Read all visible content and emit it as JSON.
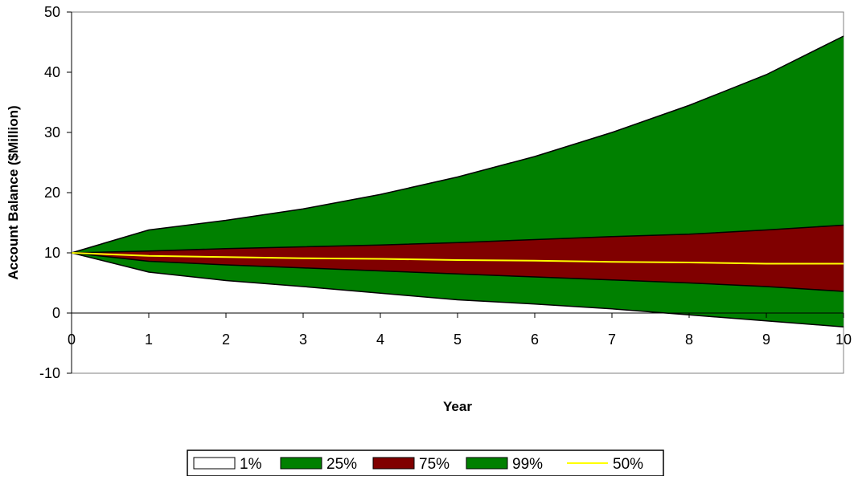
{
  "chart_data": {
    "type": "area",
    "title": "",
    "xlabel": "Year",
    "ylabel": "Account Balance ($Million)",
    "x": [
      0,
      1,
      2,
      3,
      4,
      5,
      6,
      7,
      8,
      9,
      10
    ],
    "xlim": [
      0,
      10
    ],
    "ylim": [
      -10,
      50
    ],
    "xticks": [
      0,
      1,
      2,
      3,
      4,
      5,
      6,
      7,
      8,
      9,
      10
    ],
    "yticks": [
      -10,
      0,
      10,
      20,
      30,
      40,
      50
    ],
    "grid": false,
    "legend_position": "bottom",
    "series": [
      {
        "name": "1%",
        "color": "#ffffff",
        "values": [
          10,
          6.8,
          5.4,
          4.4,
          3.3,
          2.2,
          1.5,
          0.7,
          -0.3,
          -1.3,
          -2.3
        ]
      },
      {
        "name": "25%",
        "color": "#008000",
        "values": [
          10,
          8.6,
          8.0,
          7.5,
          7.0,
          6.5,
          6.0,
          5.5,
          5.0,
          4.4,
          3.6
        ]
      },
      {
        "name": "75%",
        "color": "#800000",
        "values": [
          10,
          10.3,
          10.7,
          11.0,
          11.3,
          11.7,
          12.2,
          12.7,
          13.1,
          13.8,
          14.6
        ]
      },
      {
        "name": "99%",
        "color": "#008000",
        "values": [
          10,
          13.8,
          15.4,
          17.3,
          19.7,
          22.6,
          26.0,
          30.0,
          34.5,
          39.6,
          46.0
        ]
      },
      {
        "name": "50%",
        "color": "#ffff00",
        "values": [
          10,
          9.5,
          9.3,
          9.1,
          9.0,
          8.8,
          8.7,
          8.5,
          8.4,
          8.2,
          8.2
        ]
      }
    ]
  }
}
